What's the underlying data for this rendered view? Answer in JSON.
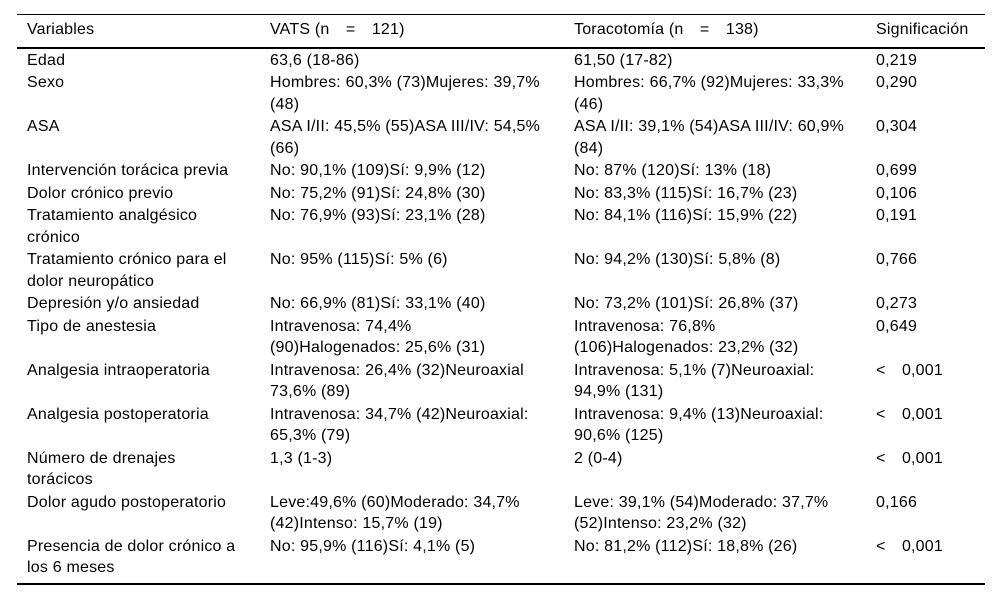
{
  "table": {
    "headers": {
      "variables": "Variables",
      "vats": "VATS (n  =  121)",
      "toracotomia": "Toracotomía (n  =  138)",
      "significacion": "Significación"
    },
    "rows": [
      {
        "variable": "Edad",
        "vats": "63,6 (18-86)",
        "toracotomia": "61,50 (17-82)",
        "significacion": "0,219"
      },
      {
        "variable": "Sexo",
        "vats": "Hombres: 60,3% (73)Mujeres: 39,7%\n(48)",
        "toracotomia": "Hombres: 66,7% (92)Mujeres: 33,3%\n(46)",
        "significacion": "0,290"
      },
      {
        "variable": "ASA",
        "vats": "ASA I/II: 45,5% (55)ASA III/IV: 54,5%\n(66)",
        "toracotomia": "ASA I/II: 39,1% (54)ASA III/IV: 60,9%\n(84)",
        "significacion": "0,304"
      },
      {
        "variable": "Intervención torácica previa",
        "vats": "No: 90,1% (109)Sí: 9,9% (12)",
        "toracotomia": "No: 87% (120)Sí: 13% (18)",
        "significacion": "0,699"
      },
      {
        "variable": "Dolor crónico previo",
        "vats": "No: 75,2% (91)Sí: 24,8% (30)",
        "toracotomia": "No: 83,3% (115)Sí: 16,7% (23)",
        "significacion": "0,106"
      },
      {
        "variable": "Tratamiento analgésico\ncrónico",
        "vats": "No: 76,9% (93)Sí: 23,1% (28)",
        "toracotomia": "No: 84,1% (116)Sí: 15,9% (22)",
        "significacion": "0,191"
      },
      {
        "variable": "Tratamiento crónico para el\ndolor neuropático",
        "vats": "No: 95% (115)Sí: 5% (6)",
        "toracotomia": "No: 94,2% (130)Sí: 5,8% (8)",
        "significacion": "0,766"
      },
      {
        "variable": "Depresión y/o ansiedad",
        "vats": "No: 66,9% (81)Sí: 33,1% (40)",
        "toracotomia": "No: 73,2% (101)Sí: 26,8% (37)",
        "significacion": "0,273"
      },
      {
        "variable": "Tipo de anestesia",
        "vats": "Intravenosa: 74,4%\n(90)Halogenados: 25,6% (31)",
        "toracotomia": "Intravenosa: 76,8%\n(106)Halogenados: 23,2% (32)",
        "significacion": "0,649"
      },
      {
        "variable": "Analgesia intraoperatoria",
        "vats": "Intravenosa: 26,4% (32)Neuroaxial\n73,6% (89)",
        "toracotomia": "Intravenosa: 5,1% (7)Neuroaxial:\n94,9% (131)",
        "significacion": "<  0,001"
      },
      {
        "variable": "Analgesia postoperatoria",
        "vats": "Intravenosa: 34,7% (42)Neuroaxial:\n65,3% (79)",
        "toracotomia": "Intravenosa: 9,4% (13)Neuroaxial:\n90,6% (125)",
        "significacion": "<  0,001"
      },
      {
        "variable": "Número de drenajes\ntorácicos",
        "vats": "1,3 (1-3)",
        "toracotomia": "2 (0-4)",
        "significacion": "<  0,001"
      },
      {
        "variable": "Dolor agudo postoperatorio",
        "vats": "Leve:49,6% (60)Moderado: 34,7%\n(42)Intenso: 15,7% (19)",
        "toracotomia": "Leve: 39,1% (54)Moderado: 37,7%\n(52)Intenso: 23,2% (32)",
        "significacion": "0,166"
      },
      {
        "variable": "Presencia de dolor crónico a\nlos 6 meses",
        "vats": "No: 95,9% (116)Sí: 4,1% (5)",
        "toracotomia": "No: 81,2% (112)Sí: 18,8% (26)",
        "significacion": "<  0,001"
      }
    ]
  }
}
